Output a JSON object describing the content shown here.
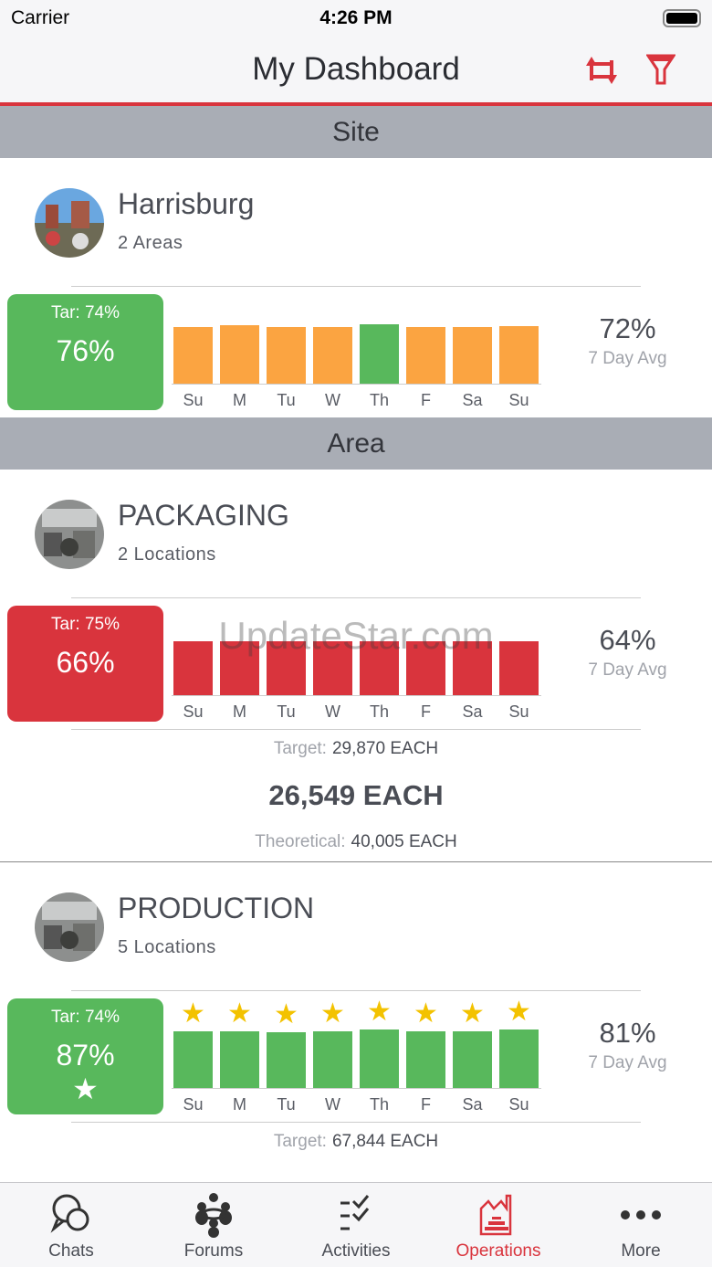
{
  "status": {
    "carrier": "Carrier",
    "time": "4:26 PM"
  },
  "header": {
    "title": "My Dashboard",
    "accent": "#d9343d"
  },
  "sections": {
    "site": "Site",
    "area": "Area"
  },
  "days": [
    "Su",
    "M",
    "Tu",
    "W",
    "Th",
    "F",
    "Sa",
    "Su"
  ],
  "cards": [
    {
      "name": "Harrisburg",
      "sub": "2 Areas",
      "target": "Tar: 74%",
      "value": "76%",
      "status": "green",
      "avg": "72%",
      "avg_label": "7 Day Avg",
      "bars": [
        71,
        73,
        71,
        71,
        75,
        71,
        71,
        72
      ],
      "bar_colors": [
        "orange",
        "orange",
        "orange",
        "orange",
        "green",
        "orange",
        "orange",
        "orange"
      ],
      "stars": false
    },
    {
      "name": "PACKAGING",
      "sub": "2 Locations",
      "target": "Tar: 75%",
      "value": "66%",
      "status": "red",
      "avg": "64%",
      "avg_label": "7 Day Avg",
      "bars": [
        68,
        68,
        68,
        68,
        68,
        68,
        68,
        68
      ],
      "bar_colors": [
        "red",
        "red",
        "red",
        "red",
        "red",
        "red",
        "red",
        "red"
      ],
      "stars": false,
      "target_label": "Target:",
      "target_value": "29,870 EACH",
      "actual": "26,549 EACH",
      "theoretical_label": "Theoretical:",
      "theoretical_value": "40,005 EACH"
    },
    {
      "name": "PRODUCTION",
      "sub": "5 Locations",
      "target": "Tar: 74%",
      "value": "87%",
      "status": "green",
      "avg": "81%",
      "avg_label": "7 Day Avg",
      "bars": [
        71,
        71,
        70,
        71,
        73,
        71,
        71,
        74
      ],
      "bar_colors": [
        "green",
        "green",
        "green",
        "green",
        "green",
        "green",
        "green",
        "green"
      ],
      "stars": true,
      "target_label": "Target:",
      "target_value": "67,844 EACH"
    }
  ],
  "colors": {
    "green": "#58b85c",
    "orange": "#fba441",
    "red": "#d9343d"
  },
  "watermark": "UpdateStar.com",
  "tabs": [
    {
      "label": "Chats"
    },
    {
      "label": "Forums"
    },
    {
      "label": "Activities"
    },
    {
      "label": "Operations",
      "active": true
    },
    {
      "label": "More"
    }
  ]
}
